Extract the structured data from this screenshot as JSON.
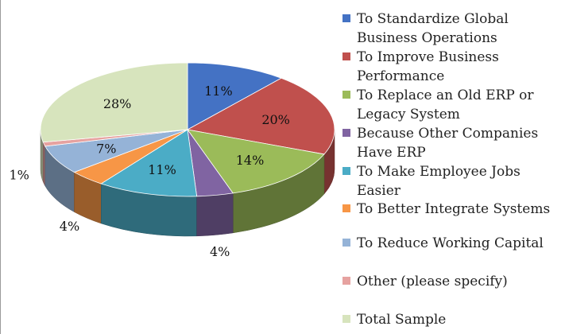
{
  "chart_data": {
    "type": "pie",
    "style": "3d",
    "legend_position": "right",
    "slices": [
      {
        "label": "To Standardize Global Business Operations",
        "value": 11,
        "display": "11%",
        "color": "#4472C4"
      },
      {
        "label": "To Improve Business Performance",
        "value": 20,
        "display": "20%",
        "color": "#C0504D"
      },
      {
        "label": "To Replace an Old ERP or Legacy System",
        "value": 14,
        "display": "14%",
        "color": "#9BBB59"
      },
      {
        "label": "Because Other Companies Have ERP",
        "value": 4,
        "display": "4%",
        "color": "#8064A2"
      },
      {
        "label": "To Make Employee Jobs Easier",
        "value": 11,
        "display": "11%",
        "color": "#4BACC6"
      },
      {
        "label": "To Better Integrate Systems",
        "value": 4,
        "display": "4%",
        "color": "#F79646"
      },
      {
        "label": "To Reduce Working Capital",
        "value": 7,
        "display": "7%",
        "color": "#95B3D7"
      },
      {
        "label": "Other (please specify)",
        "value": 1,
        "display": "1%",
        "color": "#E6A2A0"
      },
      {
        "label": "Total Sample",
        "value": 28,
        "display": "28%",
        "color": "#D7E4BD"
      }
    ]
  }
}
